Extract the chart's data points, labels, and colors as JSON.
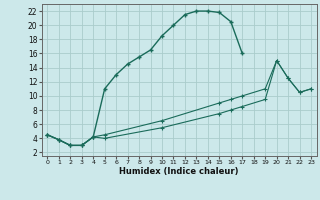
{
  "title": "",
  "xlabel": "Humidex (Indice chaleur)",
  "bg_color": "#cce8ea",
  "grid_color": "#aacccc",
  "line_color": "#1a6b5a",
  "xlim": [
    -0.5,
    23.5
  ],
  "ylim": [
    1.5,
    23
  ],
  "xticks": [
    0,
    1,
    2,
    3,
    4,
    5,
    6,
    7,
    8,
    9,
    10,
    11,
    12,
    13,
    14,
    15,
    16,
    17,
    18,
    19,
    20,
    21,
    22,
    23
  ],
  "yticks": [
    2,
    4,
    6,
    8,
    10,
    12,
    14,
    16,
    18,
    20,
    22
  ],
  "line1_x": [
    0,
    1,
    2,
    3,
    4,
    5,
    6,
    7,
    8,
    9,
    10,
    11,
    12,
    13,
    14,
    15,
    16,
    17
  ],
  "line1_y": [
    4.5,
    3.8,
    3.0,
    3.0,
    4.2,
    11.0,
    13.0,
    14.5,
    15.5,
    16.5,
    18.5,
    20.0,
    21.5,
    22.0,
    22.0,
    21.8,
    20.5,
    16.0
  ],
  "line2_x": [
    0,
    1,
    2,
    3,
    4,
    5,
    10,
    15,
    16,
    17,
    19,
    20,
    21,
    22,
    23
  ],
  "line2_y": [
    4.5,
    3.8,
    3.0,
    3.0,
    4.2,
    4.5,
    6.5,
    9.0,
    9.5,
    10.0,
    11.0,
    15.0,
    12.5,
    10.5,
    11.0
  ],
  "line3_x": [
    0,
    1,
    2,
    3,
    4,
    5,
    10,
    15,
    16,
    17,
    19,
    20,
    21,
    22,
    23
  ],
  "line3_y": [
    4.5,
    3.8,
    3.0,
    3.0,
    4.2,
    4.0,
    5.5,
    7.5,
    8.0,
    8.5,
    9.5,
    15.0,
    12.5,
    10.5,
    11.0
  ]
}
